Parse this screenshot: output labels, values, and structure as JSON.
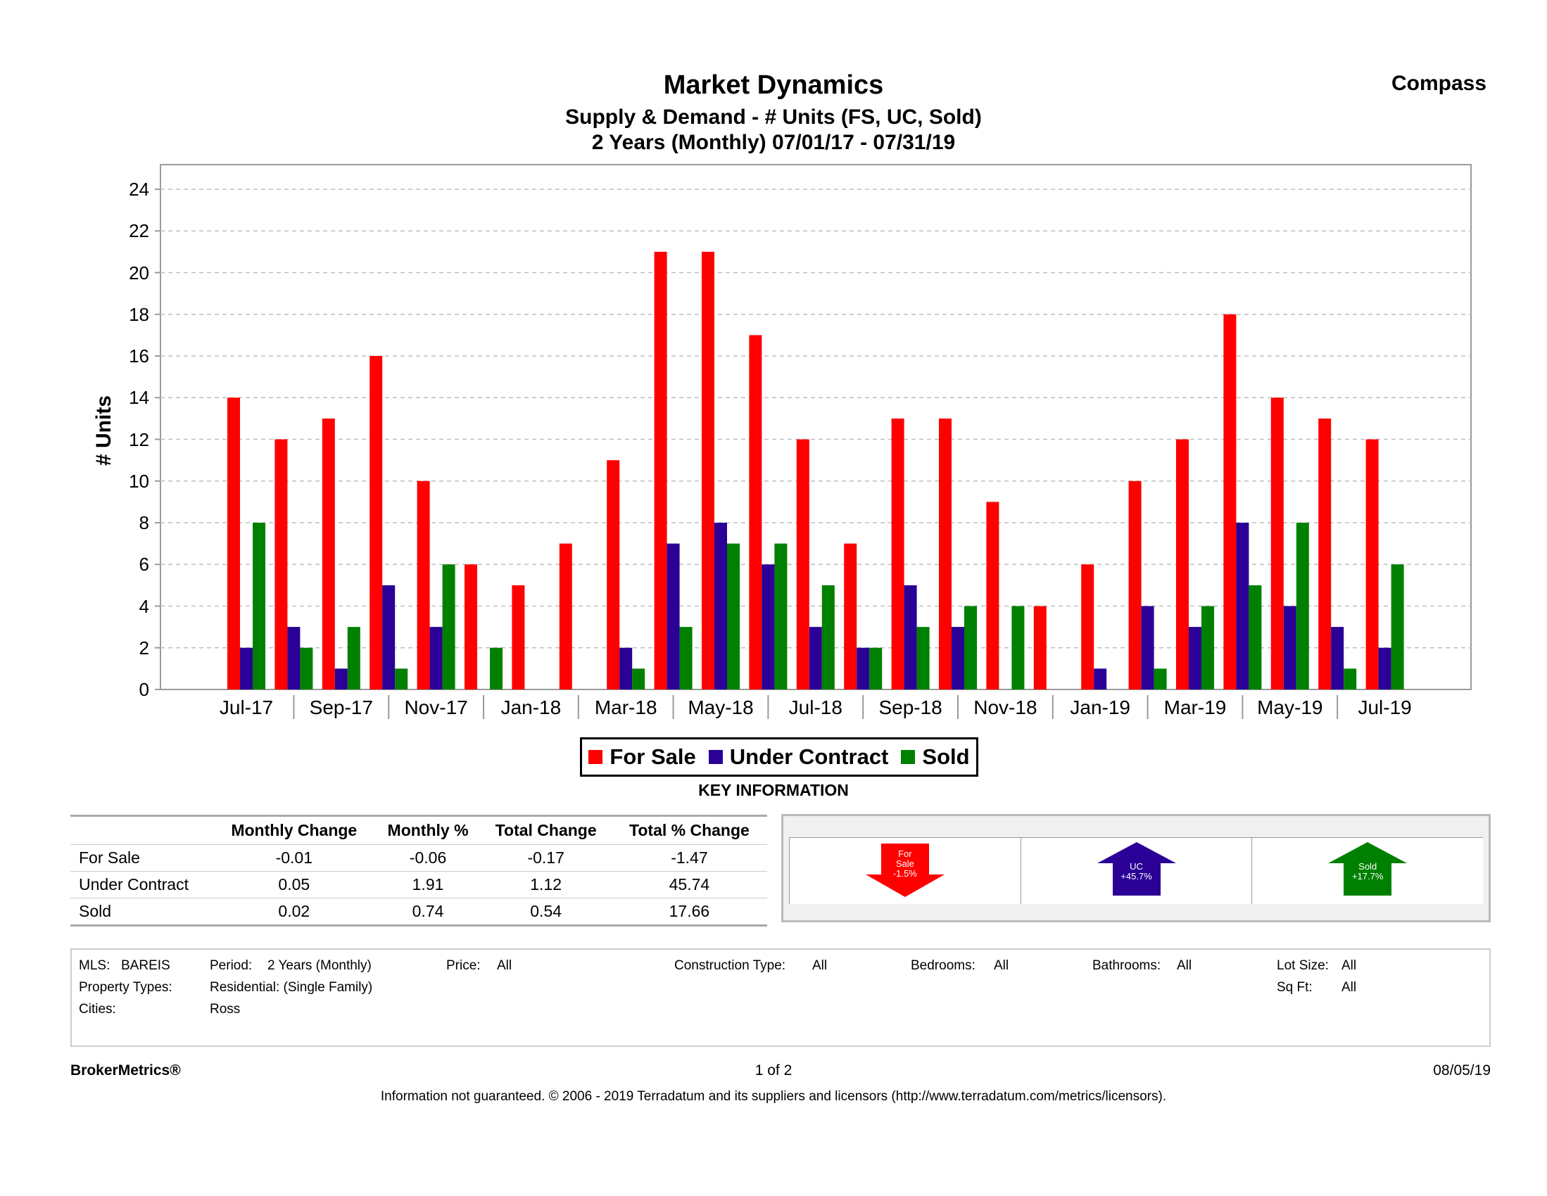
{
  "header": {
    "title": "Market Dynamics",
    "subtitle": "Supply & Demand - # Units (FS, UC, Sold)",
    "range": "2 Years (Monthly) 07/01/17 - 07/31/19",
    "brand": "Compass"
  },
  "chart_data": {
    "type": "bar",
    "ylabel": "# Units",
    "ylim": [
      0,
      24
    ],
    "yticks": [
      0,
      2,
      4,
      6,
      8,
      10,
      12,
      14,
      16,
      18,
      20,
      22,
      24
    ],
    "grid": true,
    "categories": [
      "Jul-17",
      "Aug-17",
      "Sep-17",
      "Oct-17",
      "Nov-17",
      "Dec-17",
      "Jan-18",
      "Feb-18",
      "Mar-18",
      "Apr-18",
      "May-18",
      "Jun-18",
      "Jul-18",
      "Aug-18",
      "Sep-18",
      "Oct-18",
      "Nov-18",
      "Dec-18",
      "Jan-19",
      "Feb-19",
      "Mar-19",
      "Apr-19",
      "May-19",
      "Jun-19",
      "Jul-19"
    ],
    "xtick_labels": [
      "Jul-17",
      "Sep-17",
      "Nov-17",
      "Jan-18",
      "Mar-18",
      "May-18",
      "Jul-18",
      "Sep-18",
      "Nov-18",
      "Jan-19",
      "Mar-19",
      "May-19",
      "Jul-19"
    ],
    "series": [
      {
        "name": "For Sale",
        "color": "#ff0000",
        "values": [
          14,
          12,
          13,
          16,
          10,
          6,
          5,
          7,
          11,
          21,
          21,
          17,
          12,
          7,
          13,
          13,
          9,
          4,
          6,
          10,
          12,
          18,
          14,
          13,
          12
        ]
      },
      {
        "name": "Under Contract",
        "color": "#2a0097",
        "values": [
          2,
          3,
          1,
          5,
          3,
          0,
          0,
          0,
          2,
          7,
          8,
          6,
          3,
          2,
          5,
          3,
          0,
          0,
          1,
          4,
          3,
          8,
          4,
          3,
          2
        ]
      },
      {
        "name": "Sold",
        "color": "#008000",
        "values": [
          8,
          2,
          3,
          1,
          6,
          2,
          0,
          0,
          1,
          3,
          7,
          7,
          5,
          2,
          3,
          4,
          4,
          0,
          0,
          1,
          4,
          5,
          8,
          1,
          6
        ]
      }
    ],
    "legend": "bottom-center"
  },
  "key_info": {
    "heading": "KEY INFORMATION",
    "columns": [
      "Monthly Change",
      "Monthly %",
      "Total Change",
      "Total % Change"
    ],
    "rows": [
      {
        "label": "For Sale",
        "values": [
          "-0.01",
          "-0.06",
          "-0.17",
          "-1.47"
        ]
      },
      {
        "label": "Under Contract",
        "values": [
          "0.05",
          "1.91",
          "1.12",
          "45.74"
        ]
      },
      {
        "label": "Sold",
        "values": [
          "0.02",
          "0.74",
          "0.54",
          "17.66"
        ]
      }
    ],
    "arrows": [
      {
        "line1": "For",
        "line2": "Sale",
        "line3": "-1.5%",
        "direction": "down",
        "color": "#ff0000"
      },
      {
        "line1": "UC",
        "line2": "+45.7%",
        "line3": "",
        "direction": "up",
        "color": "#2a0097"
      },
      {
        "line1": "Sold",
        "line2": "+17.7%",
        "line3": "",
        "direction": "up",
        "color": "#008000"
      }
    ]
  },
  "filters": {
    "mls_label": "MLS:",
    "mls_value": "BAREIS",
    "period_label": "Period:",
    "period_value": "2 Years (Monthly)",
    "price_label": "Price:",
    "price_value": "All",
    "construction_label": "Construction Type:",
    "construction_value": "All",
    "bedrooms_label": "Bedrooms:",
    "bedrooms_value": "All",
    "bathrooms_label": "Bathrooms:",
    "bathrooms_value": "All",
    "lot_label": "Lot Size:",
    "lot_value": "All",
    "property_label": "Property Types:",
    "property_value": "Residential: (Single Family)",
    "sqft_label": "Sq Ft:",
    "sqft_value": "All",
    "cities_label": "Cities:",
    "cities_value": "Ross"
  },
  "footer": {
    "brand": "BrokerMetrics®",
    "page": "1 of 2",
    "date": "08/05/19",
    "disclaimer": "Information not guaranteed.  © 2006 - 2019 Terradatum and its suppliers and licensors (http://www.terradatum.com/metrics/licensors)."
  }
}
